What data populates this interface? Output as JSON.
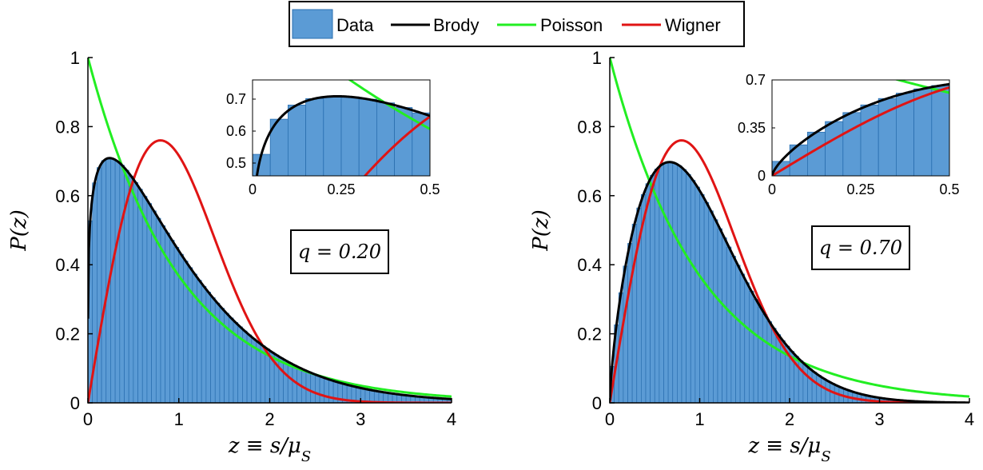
{
  "legend": {
    "entries": [
      "Data",
      "Brody",
      "Poisson",
      "Wigner"
    ],
    "placement": "top-center"
  },
  "colors": {
    "data": "#5b9bd5",
    "data_edge": "#2a6fb0",
    "brody": "#000000",
    "poisson": "#22ee22",
    "wigner": "#e01414"
  },
  "chart_data": [
    {
      "type": "bar",
      "panel": "left",
      "bin_width": 0.05,
      "brody_q": 0.2,
      "annotation": "q = 0.20",
      "xlabel": "z ≡ s/μ_S",
      "ylabel": "P(z)",
      "xlim": [
        0,
        4
      ],
      "ylim": [
        0,
        1
      ],
      "xticks": [
        "0",
        "1",
        "2",
        "3",
        "4"
      ],
      "yticks": [
        "0",
        "0.2",
        "0.4",
        "0.6",
        "0.8",
        "1"
      ],
      "series": [
        {
          "name": "Data",
          "style": "histogram"
        },
        {
          "name": "Brody",
          "style": "line"
        },
        {
          "name": "Poisson",
          "style": "line"
        },
        {
          "name": "Wigner",
          "style": "line"
        }
      ],
      "inset": {
        "xlim": [
          0,
          0.5
        ],
        "ylim": [
          0.46,
          0.76
        ],
        "xticks": [
          "0",
          "0.25",
          "0.5"
        ],
        "yticks": [
          "0.5",
          "0.6",
          "0.7"
        ]
      }
    },
    {
      "type": "bar",
      "panel": "right",
      "bin_width": 0.05,
      "brody_q": 0.7,
      "annotation": "q = 0.70",
      "xlabel": "z ≡ s/μ_S",
      "ylabel": "P(z)",
      "xlim": [
        0,
        4
      ],
      "ylim": [
        0,
        1
      ],
      "xticks": [
        "0",
        "1",
        "2",
        "3",
        "4"
      ],
      "yticks": [
        "0",
        "0.2",
        "0.4",
        "0.6",
        "0.8",
        "1"
      ],
      "series": [
        {
          "name": "Data",
          "style": "histogram"
        },
        {
          "name": "Brody",
          "style": "line"
        },
        {
          "name": "Poisson",
          "style": "line"
        },
        {
          "name": "Wigner",
          "style": "line"
        }
      ],
      "inset": {
        "xlim": [
          0,
          0.5
        ],
        "ylim": [
          0,
          0.7
        ],
        "xticks": [
          "0",
          "0.25",
          "0.5"
        ],
        "yticks": [
          "0",
          "0.35",
          "0.7"
        ]
      }
    }
  ]
}
